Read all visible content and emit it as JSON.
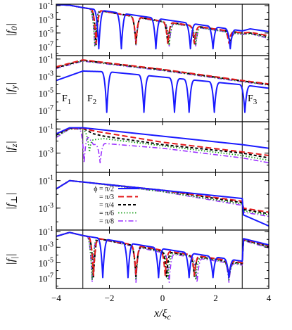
{
  "chart_data": {
    "type": "line",
    "xlabel": "x/ξ_c",
    "xlim": [
      -4,
      4
    ],
    "xticks": [
      "-4",
      "-2",
      "0",
      "2",
      "4"
    ],
    "interfaces": [
      -3,
      3
    ],
    "regions": [
      "F1",
      "F2",
      "F3"
    ],
    "ytick_labels": {
      "m1": "10^-1",
      "m3": "10^-3",
      "m5": "10^-5",
      "m7": "10^-7"
    },
    "yscale": "log",
    "legend": {
      "placement": "inside panel f_perp, left",
      "entries": [
        {
          "label": "ϕ = π/2",
          "color": "#1a1aff",
          "dash": "solid"
        },
        {
          "label": "= π/3",
          "color": "#e41a1c",
          "dash": "long-dash"
        },
        {
          "label": "= π/4",
          "color": "#000000",
          "dash": "short-dash"
        },
        {
          "label": "= π/6",
          "color": "#1a9e1a",
          "dash": "dotted"
        },
        {
          "label": "= π/8",
          "color": "#9b30ff",
          "dash": "dash-dot"
        }
      ]
    },
    "panels": [
      {
        "ylabel": "|f_0|",
        "yticks": [
          "m1",
          "m3",
          "m5",
          "m7"
        ],
        "ylim_exp": [
          -8.3,
          -0.8
        ],
        "series": [
          {
            "name": "ϕ = π/2",
            "anchors": [
              [
                -4,
                -0.85
              ],
              [
                -3.5,
                -0.95
              ],
              [
                -3,
                -1.3
              ],
              [
                0,
                -3.0
              ],
              [
                3,
                -4.7
              ],
              [
                3.3,
                -4.4
              ],
              [
                4,
                -4.8
              ]
            ],
            "zeros": [
              -2.4,
              -1.55,
              -0.25,
              1.05,
              1.9,
              2.55
            ],
            "zero_depth": -7.3
          },
          {
            "name": "= π/3",
            "anchors": [
              [
                -4,
                -0.85
              ],
              [
                -3.5,
                -0.95
              ],
              [
                -3,
                -1.3
              ],
              [
                0,
                -3.3
              ],
              [
                3,
                -5.0
              ],
              [
                3.3,
                -4.9
              ],
              [
                4,
                -5.4
              ]
            ],
            "zeros": [
              -2.5,
              -1.0,
              0.2,
              1.2,
              2.5
            ],
            "zero_depth": -6.5
          },
          {
            "name": "= π/4",
            "anchors": [
              [
                -4,
                -0.85
              ],
              [
                -3.5,
                -0.95
              ],
              [
                -3,
                -1.3
              ],
              [
                0,
                -3.3
              ],
              [
                3,
                -5.0
              ],
              [
                3.3,
                -5.0
              ],
              [
                4,
                -5.5
              ]
            ],
            "zeros": [
              -2.5,
              -1.0,
              0.2,
              1.2,
              2.55
            ],
            "zero_depth": -6.7
          },
          {
            "name": "= π/6",
            "anchors": [
              [
                -4,
                -0.85
              ],
              [
                -3.5,
                -0.95
              ],
              [
                -3,
                -1.3
              ],
              [
                0,
                -3.4
              ],
              [
                3,
                -5.2
              ],
              [
                3.3,
                -5.1
              ],
              [
                4,
                -5.7
              ]
            ],
            "zeros": [
              -2.55,
              -1.0,
              0.25,
              1.25,
              2.55
            ],
            "zero_depth": -6.8
          },
          {
            "name": "= π/8",
            "anchors": [
              [
                -4,
                -0.85
              ],
              [
                -3.5,
                -0.95
              ],
              [
                -3,
                -1.3
              ],
              [
                0,
                -3.4
              ],
              [
                3,
                -5.2
              ],
              [
                3.3,
                -5.1
              ],
              [
                4,
                -5.8
              ]
            ],
            "zeros": [
              -2.55,
              -1.0,
              0.25,
              1.25,
              2.55
            ],
            "zero_depth": -6.9
          }
        ]
      },
      {
        "ylabel": "|f_y|",
        "yticks": [
          "m1",
          "m3",
          "m5",
          "m7"
        ],
        "ylim_exp": [
          -8.3,
          -0.6
        ],
        "series": [
          {
            "name": "ϕ = π/2",
            "anchors": [
              [
                -4,
                -3.5
              ],
              [
                -3,
                -2.4
              ],
              [
                -2,
                -2.5
              ],
              [
                0,
                -3.1
              ],
              [
                2,
                -3.7
              ],
              [
                3,
                -4.0
              ],
              [
                4,
                -4.4
              ]
            ],
            "zeros": [
              -2.1,
              -0.7,
              0.45,
              1.0,
              1.95,
              3.1
            ],
            "zero_depth": -7.2
          },
          {
            "name": "= π/3",
            "anchors": [
              [
                -4,
                -1.9
              ],
              [
                -3,
                -1.1
              ],
              [
                0,
                -2.2
              ],
              [
                3,
                -3.5
              ],
              [
                4,
                -3.9
              ]
            ],
            "zeros": [],
            "zero_depth": 0
          },
          {
            "name": "= π/4",
            "anchors": [
              [
                -4,
                -2.0
              ],
              [
                -3,
                -1.15
              ],
              [
                0,
                -2.25
              ],
              [
                3,
                -3.55
              ],
              [
                4,
                -3.95
              ]
            ],
            "zeros": [],
            "zero_depth": 0
          },
          {
            "name": "= π/6",
            "anchors": [
              [
                -4,
                -2.0
              ],
              [
                -3,
                -1.2
              ],
              [
                0,
                -2.3
              ],
              [
                3,
                -3.6
              ],
              [
                4,
                -4.0
              ]
            ],
            "zeros": [],
            "zero_depth": 0
          },
          {
            "name": "= π/8",
            "anchors": [
              [
                -4,
                -2.1
              ],
              [
                -3,
                -1.25
              ],
              [
                0,
                -2.35
              ],
              [
                3,
                -3.65
              ],
              [
                4,
                -4.05
              ]
            ],
            "zeros": [],
            "zero_depth": 0
          }
        ]
      },
      {
        "ylabel": "|f_z|",
        "yticks": [
          "m1",
          "m3"
        ],
        "ylim_exp": [
          -4.6,
          -0.4
        ],
        "series": [
          {
            "name": "ϕ = π/2",
            "anchors": [
              [
                -4,
                -1.4
              ],
              [
                -3.5,
                -0.9
              ],
              [
                -3,
                -0.9
              ],
              [
                0,
                -1.6
              ],
              [
                3,
                -2.3
              ],
              [
                4,
                -2.6
              ]
            ],
            "zeros": [],
            "zero_depth": 0
          },
          {
            "name": "= π/3",
            "anchors": [
              [
                -4,
                -1.4
              ],
              [
                -3.5,
                -0.95
              ],
              [
                -3,
                -0.95
              ],
              [
                -2.5,
                -1.2
              ],
              [
                0,
                -2.1
              ],
              [
                3,
                -2.9
              ],
              [
                4,
                -3.2
              ]
            ],
            "zeros": [],
            "zero_depth": 0
          },
          {
            "name": "= π/4",
            "anchors": [
              [
                -4,
                -1.5
              ],
              [
                -3.5,
                -0.95
              ],
              [
                -3,
                -0.95
              ],
              [
                -2.6,
                -1.4
              ],
              [
                -2.2,
                -1.6
              ],
              [
                0,
                -2.3
              ],
              [
                3,
                -3.0
              ],
              [
                4,
                -3.4
              ]
            ],
            "zeros": [],
            "zero_depth": 0
          },
          {
            "name": "= π/6",
            "anchors": [
              [
                -4,
                -1.6
              ],
              [
                -3.5,
                -1.0
              ],
              [
                -3,
                -1.0
              ],
              [
                -2.6,
                -1.9
              ],
              [
                -2.2,
                -1.8
              ],
              [
                0,
                -2.4
              ],
              [
                3,
                -3.2
              ],
              [
                4,
                -3.6
              ]
            ],
            "zeros": [
              -2.75
            ],
            "zero_depth": -2.9
          },
          {
            "name": "= π/8",
            "anchors": [
              [
                -4,
                -1.7
              ],
              [
                -3.5,
                -1.0
              ],
              [
                -3,
                -1.0
              ],
              [
                -2.6,
                -2.3
              ],
              [
                -2.2,
                -2.2
              ],
              [
                0,
                -2.6
              ],
              [
                3,
                -3.4
              ],
              [
                4,
                -3.8
              ]
            ],
            "zeros": [
              -2.95,
              -2.35
            ],
            "zero_depth": -3.8
          }
        ]
      },
      {
        "ylabel": "|f_⊥|",
        "yticks": [
          "m1",
          "m3"
        ],
        "ylim_exp": [
          -4.6,
          -0.4
        ],
        "series": [
          {
            "name": "ϕ = π/2",
            "anchors": [
              [
                -4,
                -1.6
              ],
              [
                -3.5,
                -1.0
              ],
              [
                -3,
                -1.1
              ],
              [
                0,
                -1.7
              ],
              [
                3,
                -2.3
              ],
              [
                3.05,
                -3.5
              ],
              [
                4,
                -4.3
              ]
            ],
            "zeros": [],
            "zero_depth": 0
          },
          {
            "name": "= π/3",
            "anchors": [
              [
                -4,
                -1.6
              ],
              [
                -3.5,
                -1.0
              ],
              [
                -3,
                -1.1
              ],
              [
                0,
                -1.7
              ],
              [
                3,
                -2.5
              ],
              [
                3.05,
                -3.0
              ],
              [
                4,
                -3.3
              ]
            ],
            "zeros": [],
            "zero_depth": 0
          },
          {
            "name": "= π/4",
            "anchors": [
              [
                -4,
                -1.6
              ],
              [
                -3.5,
                -1.0
              ],
              [
                -3,
                -1.1
              ],
              [
                0,
                -1.7
              ],
              [
                3,
                -2.6
              ],
              [
                3.05,
                -3.1
              ],
              [
                4,
                -3.4
              ]
            ],
            "zeros": [],
            "zero_depth": 0
          },
          {
            "name": "= π/6",
            "anchors": [
              [
                -4,
                -1.6
              ],
              [
                -3.5,
                -1.0
              ],
              [
                -3,
                -1.1
              ],
              [
                0,
                -1.8
              ],
              [
                3,
                -2.7
              ],
              [
                3.05,
                -3.2
              ],
              [
                4,
                -3.5
              ]
            ],
            "zeros": [],
            "zero_depth": 0
          },
          {
            "name": "= π/8",
            "anchors": [
              [
                -4,
                -1.6
              ],
              [
                -3.5,
                -1.0
              ],
              [
                -3,
                -1.1
              ],
              [
                0,
                -1.8
              ],
              [
                3,
                -2.8
              ],
              [
                3.05,
                -3.3
              ],
              [
                4,
                -3.6
              ]
            ],
            "zeros": [],
            "zero_depth": 0
          }
        ]
      },
      {
        "ylabel": "|f_||",
        "yticks": [
          "m1",
          "m3",
          "m5",
          "m7"
        ],
        "ylim_exp": [
          -8.3,
          -0.8
        ],
        "series": [
          {
            "name": "ϕ = π/2",
            "anchors": [
              [
                -4,
                -1.6
              ],
              [
                -3.5,
                -1.1
              ],
              [
                -3,
                -1.5
              ],
              [
                0,
                -3.2
              ],
              [
                3,
                -4.8
              ],
              [
                3.05,
                -1.9
              ],
              [
                4,
                -2.7
              ]
            ],
            "zeros": [
              -2.25,
              -1.3,
              -0.15,
              1.0,
              1.9,
              2.5
            ],
            "zero_depth": -6.9
          },
          {
            "name": "= π/3",
            "anchors": [
              [
                -4,
                -1.6
              ],
              [
                -3.5,
                -1.1
              ],
              [
                -3,
                -1.5
              ],
              [
                0,
                -3.4
              ],
              [
                3,
                -5.0
              ],
              [
                3.05,
                -2.0
              ],
              [
                4,
                -2.8
              ]
            ],
            "zeros": [
              -2.6,
              -1.0,
              0.1,
              1.2,
              2.5
            ],
            "zero_depth": -6.6
          },
          {
            "name": "= π/4",
            "anchors": [
              [
                -4,
                -1.6
              ],
              [
                -3.5,
                -1.1
              ],
              [
                -3,
                -1.5
              ],
              [
                0,
                -3.5
              ],
              [
                3,
                -5.1
              ],
              [
                3.05,
                -2.05
              ],
              [
                4,
                -2.9
              ]
            ],
            "zeros": [
              -2.6,
              -1.0,
              0.15,
              1.2,
              2.5
            ],
            "zero_depth": -6.8
          },
          {
            "name": "= π/6",
            "anchors": [
              [
                -4,
                -1.6
              ],
              [
                -3.5,
                -1.1
              ],
              [
                -3,
                -1.5
              ],
              [
                0,
                -3.6
              ],
              [
                3,
                -5.2
              ],
              [
                3.05,
                -2.1
              ],
              [
                4,
                -3.0
              ]
            ],
            "zeros": [
              -2.65,
              -1.0,
              0.2,
              1.25,
              2.5
            ],
            "zero_depth": -7.2
          },
          {
            "name": "= π/8",
            "anchors": [
              [
                -4,
                -1.6
              ],
              [
                -3.5,
                -1.1
              ],
              [
                -3,
                -1.5
              ],
              [
                0,
                -3.7
              ],
              [
                3,
                -5.3
              ],
              [
                3.05,
                -2.15
              ],
              [
                4,
                -3.1
              ]
            ],
            "zeros": [
              -2.65,
              -1.0,
              0.25,
              1.3,
              2.5
            ],
            "zero_depth": -7.5
          }
        ]
      }
    ]
  }
}
